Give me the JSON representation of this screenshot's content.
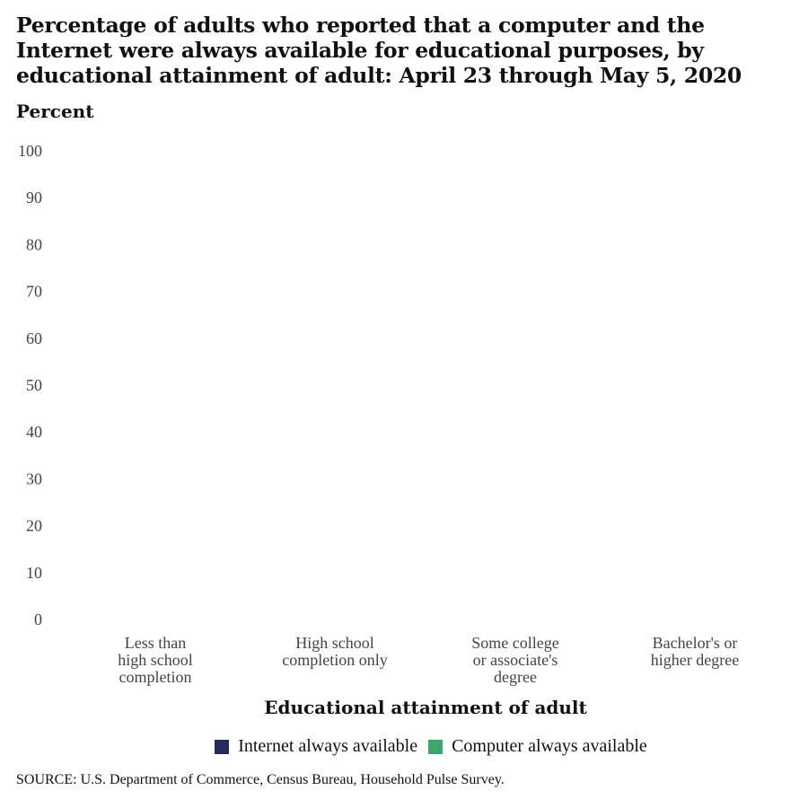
{
  "chart_data": {
    "type": "bar",
    "title": "Percentage of adults who reported that a computer and the Internet were always available for educational purposes, by educational attainment of adult: April 23 through May 5, 2020",
    "ylabel": "Percent",
    "xlabel": "Educational attainment of adult",
    "ylim": [
      0,
      100
    ],
    "yticks": [
      "0",
      "10",
      "20",
      "30",
      "40",
      "50",
      "60",
      "70",
      "80",
      "90",
      "100"
    ],
    "categories": [
      [
        "Less than",
        "high school",
        "completion"
      ],
      [
        "High school",
        "completion only"
      ],
      [
        "Some college",
        "or associate's",
        "degree"
      ],
      [
        "Bachelor's or",
        "higher degree"
      ]
    ],
    "series": [
      {
        "name": "Internet always available",
        "color": "#252b5c",
        "values": [
          null,
          null,
          null,
          null
        ]
      },
      {
        "name": "Computer always available",
        "color": "#3fa66b",
        "values": [
          null,
          null,
          null,
          null
        ]
      }
    ],
    "legend_position": "bottom",
    "grid": false
  },
  "source": "SOURCE: U.S. Department of Commerce, Census Bureau, Household Pulse Survey."
}
